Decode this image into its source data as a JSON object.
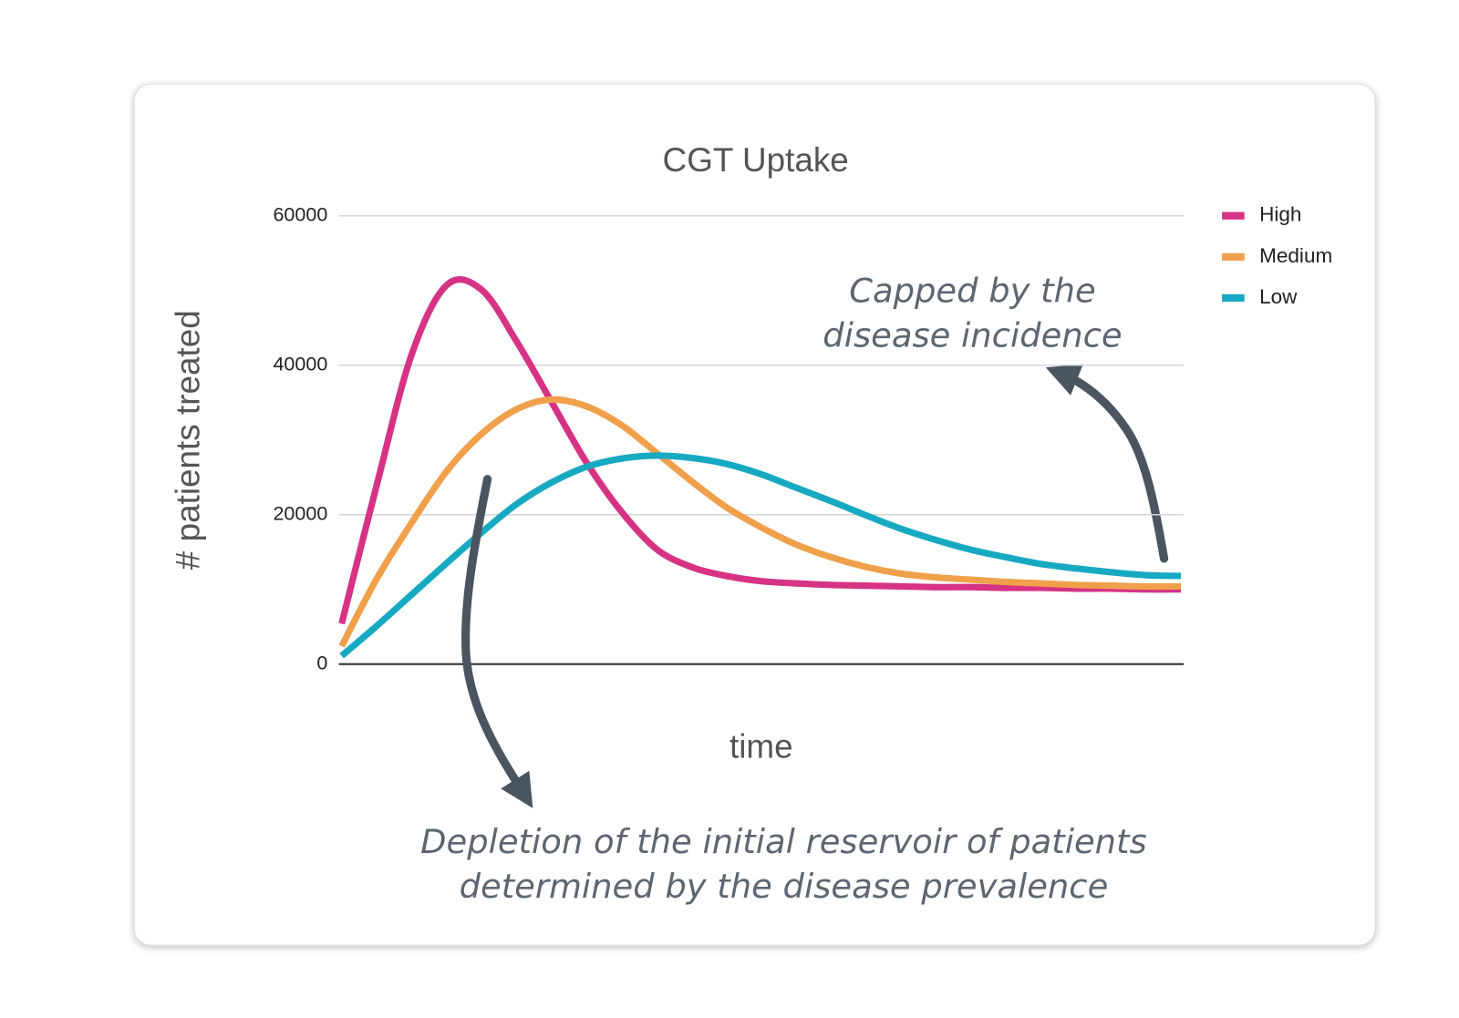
{
  "chart_data": {
    "type": "line",
    "title": "CGT Uptake",
    "ylabel": "# patients treated",
    "xlabel": "time",
    "categories": [
      null,
      null,
      null,
      null,
      null,
      null,
      null,
      null,
      null,
      null,
      null,
      null,
      null,
      null,
      null,
      null,
      null,
      null,
      null,
      null,
      null,
      null,
      null,
      null,
      null
    ],
    "series": [
      {
        "name": "High",
        "color": "#d63384",
        "values": [
          5400,
          23900,
          41400,
          50700,
          50100,
          43200,
          35100,
          27000,
          20400,
          15400,
          13000,
          11800,
          11100,
          10800,
          10600,
          10500,
          10400,
          10300,
          10300,
          10200,
          10200,
          10100,
          10100,
          10000,
          10000
        ]
      },
      {
        "name": "Medium",
        "color": "#f0a04b",
        "values": [
          2400,
          11400,
          18900,
          25800,
          30800,
          34100,
          35400,
          34500,
          32000,
          28300,
          24500,
          21000,
          18300,
          16000,
          14300,
          13000,
          12100,
          11600,
          11300,
          11000,
          10800,
          10600,
          10500,
          10400,
          10400
        ]
      },
      {
        "name": "Low",
        "color": "#17a9c2",
        "values": [
          1100,
          5100,
          9300,
          13500,
          17600,
          21400,
          24300,
          26400,
          27500,
          27900,
          27600,
          26800,
          25400,
          23600,
          21800,
          19900,
          18100,
          16600,
          15300,
          14300,
          13400,
          12800,
          12300,
          11900,
          11800
        ]
      }
    ],
    "ylim": [
      0,
      60000
    ],
    "yticks": [
      0,
      20000,
      40000,
      60000
    ],
    "grid": true,
    "legend": "right",
    "annotations": [
      "Capped by the",
      "disease incidence",
      "Depletion of the initial reservoir of patients",
      "determined by the disease prevalence"
    ]
  }
}
